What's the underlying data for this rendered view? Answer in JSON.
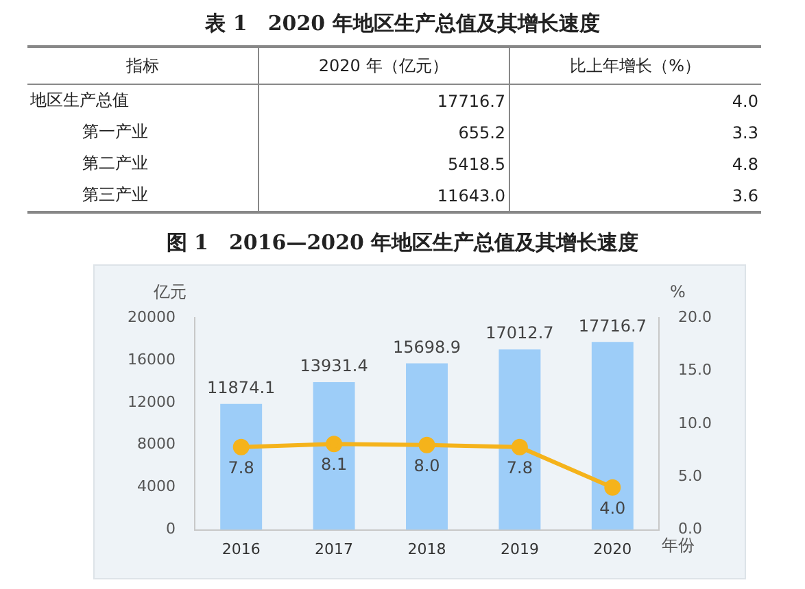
{
  "chart_data": [
    {
      "type": "other",
      "title": "表 1　2020 年地区生产总值及其增长速度",
      "annotations": [
        "指标",
        "2020 年（亿元）",
        "比上年增长（%）",
        "地区生产总值",
        "17716.7",
        "4.0",
        "第一产业",
        "655.2",
        "3.3",
        "第二产业",
        "5418.5",
        "4.8",
        "第三产业",
        "11643.0",
        "3.6"
      ]
    },
    {
      "type": "bar",
      "title": "图 1　2016—2020 年地区生产总值及其增长速度",
      "xlabel": "年份",
      "ylabel": "亿元",
      "y2label": "%",
      "categories": [
        "2016",
        "2017",
        "2018",
        "2019",
        "2020"
      ],
      "ylim": [
        0,
        20000
      ],
      "yticks": [
        0,
        4000,
        8000,
        12000,
        16000,
        20000
      ],
      "y2lim": [
        0,
        20
      ],
      "y2ticks": [
        {
          "value": 0,
          "label": "0.0"
        },
        {
          "value": 5,
          "label": "5.0"
        },
        {
          "value": 10,
          "label": "10.0"
        },
        {
          "value": 15,
          "label": "15.0"
        },
        {
          "value": 20,
          "label": "20.0"
        }
      ],
      "grid": false,
      "legend": false,
      "marker": "circle",
      "series": [
        {
          "type": "bar",
          "color": "#9dcdf8",
          "values": [
            11874.1,
            13931.4,
            15698.9,
            17012.7,
            17716.7
          ],
          "value_labels": [
            "11874.1",
            "13931.4",
            "15698.9",
            "17012.7",
            "17716.7"
          ]
        },
        {
          "type": "line",
          "axis": "y2",
          "color": "#f5b31b",
          "values": [
            7.8,
            8.1,
            8.0,
            7.8,
            4.0
          ],
          "value_labels": [
            "7.8",
            "8.1",
            "8.0",
            "7.8",
            "4.0"
          ]
        }
      ]
    }
  ]
}
